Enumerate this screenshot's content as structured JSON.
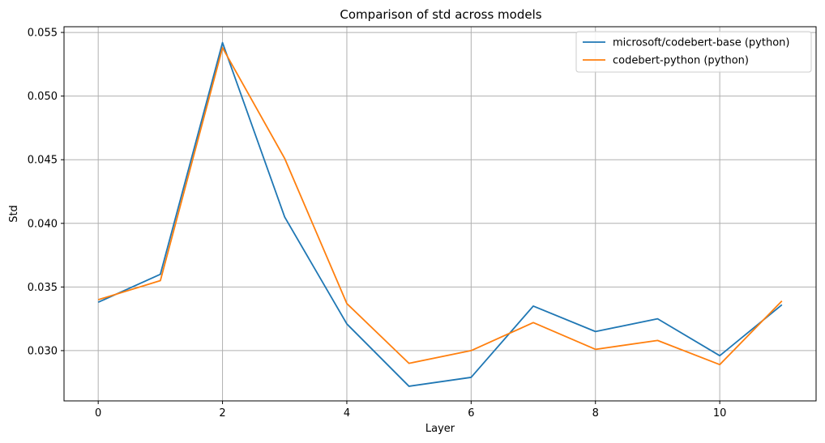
{
  "chart_data": {
    "type": "line",
    "title": "Comparison of std across models",
    "xlabel": "Layer",
    "ylabel": "Std",
    "xlim": [
      -0.55,
      11.55
    ],
    "ylim": [
      0.02605,
      0.05545
    ],
    "x_ticks": [
      0,
      2,
      4,
      6,
      8,
      10
    ],
    "x_tick_labels": [
      "0",
      "2",
      "4",
      "6",
      "8",
      "10"
    ],
    "y_ticks": [
      0.03,
      0.035,
      0.04,
      0.045,
      0.05,
      0.055
    ],
    "y_tick_labels": [
      "0.030",
      "0.035",
      "0.040",
      "0.045",
      "0.050",
      "0.055"
    ],
    "grid": true,
    "legend_position": "top-right",
    "x": [
      0,
      1,
      2,
      3,
      4,
      5,
      6,
      7,
      8,
      9,
      10,
      11
    ],
    "series": [
      {
        "name": "microsoft/codebert-base (python)",
        "color": "#1f77b4",
        "values": [
          0.0338,
          0.036,
          0.0542,
          0.0405,
          0.0321,
          0.0272,
          0.0279,
          0.0335,
          0.0315,
          0.0325,
          0.0296,
          0.0336
        ]
      },
      {
        "name": "codebert-python (python)",
        "color": "#ff7f0e",
        "values": [
          0.034,
          0.0355,
          0.0538,
          0.0451,
          0.0337,
          0.029,
          0.03,
          0.0322,
          0.0301,
          0.0308,
          0.0289,
          0.0339
        ]
      }
    ]
  }
}
